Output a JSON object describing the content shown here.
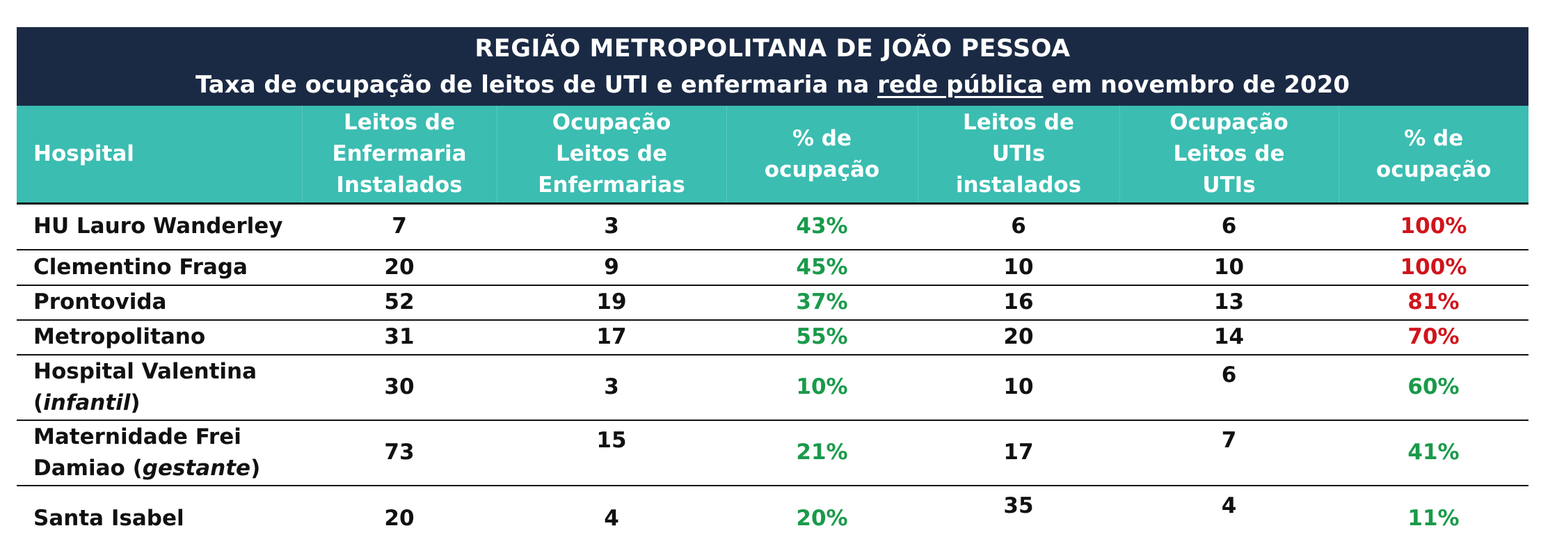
{
  "title": {
    "line1": "REGIÃO METROPOLITANA DE JOÃO PESSOA",
    "line2_pre": "Taxa de ocupação de leitos de UTI e enfermaria na ",
    "line2_underline": "rede pública",
    "line2_post": " em novembro de 2020"
  },
  "headers": [
    [
      "Hospital"
    ],
    [
      "Leitos de",
      "Enfermaria",
      "Instalados"
    ],
    [
      "Ocupação",
      "Leitos de",
      "Enfermarias"
    ],
    [
      "% de",
      "ocupação"
    ],
    [
      "Leitos de",
      "UTIs",
      "instalados"
    ],
    [
      "Ocupação",
      "Leitos de",
      "UTIs"
    ],
    [
      "% de",
      "ocupação"
    ]
  ],
  "rows": [
    {
      "name": "HU Lauro Wanderley",
      "name_note": "",
      "enf": "7",
      "occ_enf": "3",
      "pct_enf": "43%",
      "uti": "6",
      "occ_uti": "6",
      "pct_uti": "100%"
    },
    {
      "name": "Clementino Fraga",
      "name_note": "",
      "enf": "20",
      "occ_enf": "9",
      "pct_enf": "45%",
      "uti": "10",
      "occ_uti": "10",
      "pct_uti": "100%"
    },
    {
      "name": "Prontovida",
      "name_note": "",
      "enf": "52",
      "occ_enf": "19",
      "pct_enf": "37%",
      "uti": "16",
      "occ_uti": "13",
      "pct_uti": "81%"
    },
    {
      "name": "Metropolitano",
      "name_note": "",
      "enf": "31",
      "occ_enf": "17",
      "pct_enf": "55%",
      "uti": "20",
      "occ_uti": "14",
      "pct_uti": "70%"
    },
    {
      "name": "Hospital Valentina",
      "name_pre": "(",
      "name_note": "infantil",
      "name_post": ")",
      "enf": "30",
      "occ_enf": "3",
      "pct_enf": "10%",
      "uti": "10",
      "occ_uti": "6",
      "pct_uti": "60%"
    },
    {
      "name": "Maternidade Frei",
      "name_pre": "Damiao (",
      "name_note": "gestante",
      "name_post": ")",
      "enf": "73",
      "occ_enf": "15",
      "pct_enf": "21%",
      "uti": "17",
      "occ_uti": "7",
      "pct_uti": "41%"
    },
    {
      "name": "Santa Isabel",
      "name_note": "",
      "enf": "20",
      "occ_enf": "4",
      "pct_enf": "20%",
      "uti": "35",
      "occ_uti": "4",
      "pct_uti": "11%"
    }
  ],
  "colors": {
    "header_dark": "#1b2a44",
    "header_teal": "#3bbdb1",
    "low": "#1a9a4a",
    "high": "#d0141b"
  }
}
